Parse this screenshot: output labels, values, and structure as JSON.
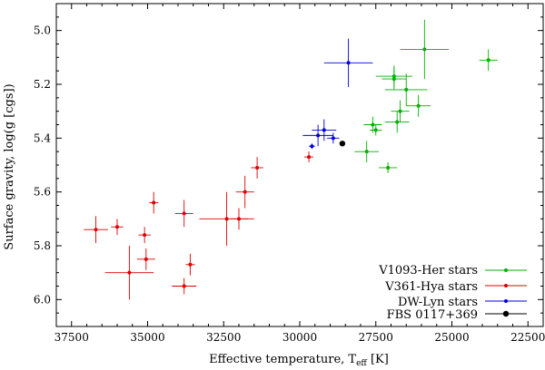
{
  "chart_data": {
    "type": "scatter",
    "title": "",
    "xlabel": "Effective temperature, T",
    "xlabel_sub": "eff",
    "xlabel_suffix": " [K]",
    "ylabel": "Surface gravity, log(g [cgs])",
    "xlim": [
      38000,
      22000
    ],
    "ylim": [
      6.1,
      4.9
    ],
    "x_ticks": [
      37500,
      35000,
      32500,
      30000,
      27500,
      25000,
      22500
    ],
    "y_ticks": [
      5.0,
      5.2,
      5.4,
      5.6,
      5.8,
      6.0
    ],
    "x_tick_labels": [
      "37500",
      "35000",
      "32500",
      "30000",
      "27500",
      "25000",
      "22500"
    ],
    "y_tick_labels": [
      "5.0",
      "5.2",
      "5.4",
      "5.6",
      "5.8",
      "6.0"
    ],
    "grid": false,
    "legend_position": "bottom-right",
    "series": [
      {
        "name": "V1093-Her stars",
        "color": "#00b000",
        "marker": "dot",
        "points": [
          {
            "x": 25900,
            "y": 5.07,
            "xerr": 800,
            "yerr": 0.11
          },
          {
            "x": 23800,
            "y": 5.11,
            "xerr": 300,
            "yerr": 0.04
          },
          {
            "x": 26900,
            "y": 5.17,
            "xerr": 600,
            "yerr": 0.04
          },
          {
            "x": 26900,
            "y": 5.18,
            "xerr": 400,
            "yerr": 0.04
          },
          {
            "x": 26500,
            "y": 5.22,
            "xerr": 700,
            "yerr": 0.06
          },
          {
            "x": 26100,
            "y": 5.28,
            "xerr": 400,
            "yerr": 0.04
          },
          {
            "x": 26700,
            "y": 5.3,
            "xerr": 300,
            "yerr": 0.04
          },
          {
            "x": 26800,
            "y": 5.34,
            "xerr": 400,
            "yerr": 0.04
          },
          {
            "x": 27600,
            "y": 5.35,
            "xerr": 300,
            "yerr": 0.03
          },
          {
            "x": 27500,
            "y": 5.37,
            "xerr": 200,
            "yerr": 0.02
          },
          {
            "x": 27800,
            "y": 5.45,
            "xerr": 400,
            "yerr": 0.04
          },
          {
            "x": 27100,
            "y": 5.51,
            "xerr": 300,
            "yerr": 0.02
          }
        ]
      },
      {
        "name": "V361-Hya stars",
        "color": "#dd0000",
        "marker": "dot",
        "points": [
          {
            "x": 29700,
            "y": 5.47,
            "xerr": 150,
            "yerr": 0.02
          },
          {
            "x": 31400,
            "y": 5.51,
            "xerr": 200,
            "yerr": 0.04
          },
          {
            "x": 31800,
            "y": 5.6,
            "xerr": 300,
            "yerr": 0.06
          },
          {
            "x": 34800,
            "y": 5.64,
            "xerr": 150,
            "yerr": 0.04
          },
          {
            "x": 33800,
            "y": 5.68,
            "xerr": 300,
            "yerr": 0.05
          },
          {
            "x": 32400,
            "y": 5.7,
            "xerr": 900,
            "yerr": 0.1
          },
          {
            "x": 32000,
            "y": 5.7,
            "xerr": 300,
            "yerr": 0.04
          },
          {
            "x": 36700,
            "y": 5.74,
            "xerr": 400,
            "yerr": 0.05
          },
          {
            "x": 36000,
            "y": 5.73,
            "xerr": 200,
            "yerr": 0.03
          },
          {
            "x": 35100,
            "y": 5.76,
            "xerr": 200,
            "yerr": 0.03
          },
          {
            "x": 35050,
            "y": 5.85,
            "xerr": 300,
            "yerr": 0.04
          },
          {
            "x": 33600,
            "y": 5.87,
            "xerr": 150,
            "yerr": 0.04
          },
          {
            "x": 35600,
            "y": 5.9,
            "xerr": 800,
            "yerr": 0.1
          },
          {
            "x": 33800,
            "y": 5.95,
            "xerr": 400,
            "yerr": 0.03
          }
        ]
      },
      {
        "name": "DW-Lyn stars",
        "color": "#0000dd",
        "marker": "dot",
        "points": [
          {
            "x": 28400,
            "y": 5.12,
            "xerr": 800,
            "yerr": 0.09
          },
          {
            "x": 29200,
            "y": 5.37,
            "xerr": 400,
            "yerr": 0.04
          },
          {
            "x": 29400,
            "y": 5.39,
            "xerr": 500,
            "yerr": 0.04
          },
          {
            "x": 28900,
            "y": 5.4,
            "xerr": 200,
            "yerr": 0.02
          },
          {
            "x": 29600,
            "y": 5.43,
            "xerr": 100,
            "yerr": 0.01
          }
        ]
      },
      {
        "name": "FBS 0117+369",
        "color": "#000000",
        "marker": "big-dot",
        "points": [
          {
            "x": 28600,
            "y": 5.42,
            "xerr": 0,
            "yerr": 0
          }
        ]
      }
    ]
  }
}
